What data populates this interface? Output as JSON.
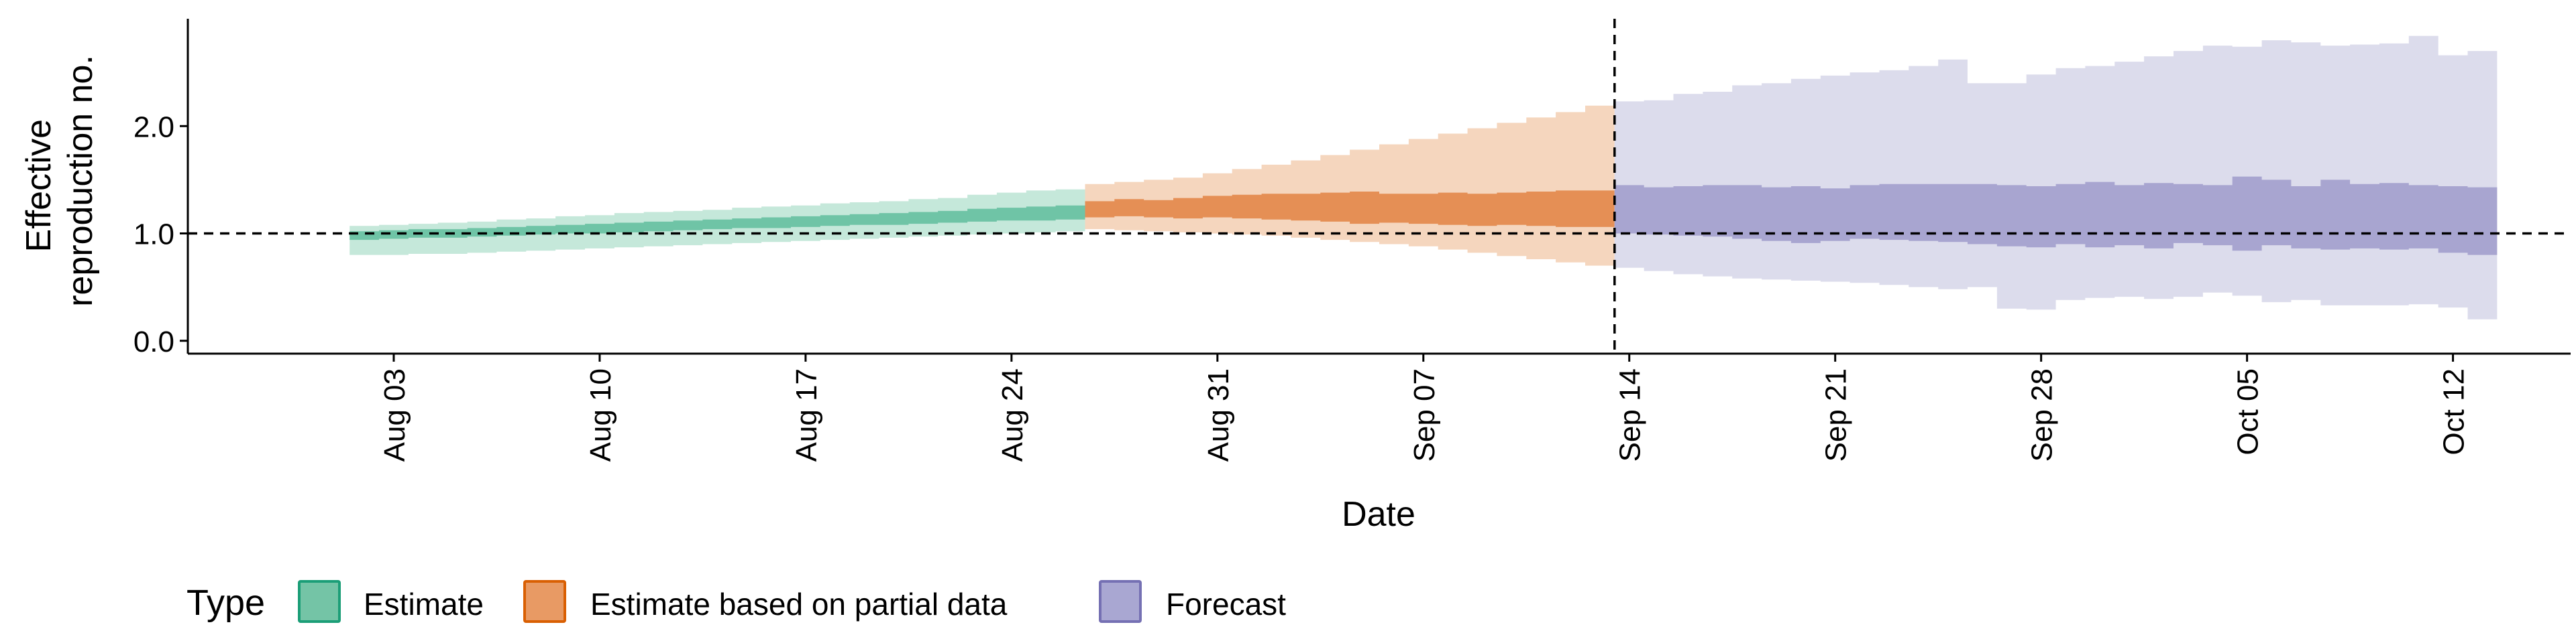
{
  "chart_data": {
    "type": "area",
    "xlabel": "Date",
    "ylabel_lines": [
      "Effective",
      "reproduction no."
    ],
    "x_date_ticks": [
      "2020-08-03",
      "2020-08-10",
      "2020-08-17",
      "2020-08-24",
      "2020-08-31",
      "2020-09-07",
      "2020-09-14",
      "2020-09-21",
      "2020-09-28",
      "2020-10-05",
      "2020-10-12"
    ],
    "x_tick_labels": [
      "Aug 03",
      "Aug 10",
      "Aug 17",
      "Aug 24",
      "Aug 31",
      "Sep 07",
      "Sep 14",
      "Sep 21",
      "Sep 28",
      "Oct 05",
      "Oct 12"
    ],
    "y_ticks": [
      0.0,
      1.0,
      2.0
    ],
    "y_tick_labels": [
      "0.0",
      "1.0",
      "2.0"
    ],
    "xlim": [
      "2020-07-27",
      "2020-10-16"
    ],
    "ylim": [
      -0.12,
      3.0
    ],
    "reference_hline": 1.0,
    "reference_vline": "2020-09-13",
    "grid": false,
    "legend_position": "bottom-left",
    "legend": {
      "title": "Type",
      "items": [
        {
          "label": "Estimate",
          "fill": "#74c4a6",
          "border": "#1b9e77"
        },
        {
          "label": "Estimate based on partial data",
          "fill": "#e89a64",
          "border": "#d95f02"
        },
        {
          "label": "Forecast",
          "fill": "#a9a7d2",
          "border": "#7570b3"
        }
      ]
    },
    "series": [
      {
        "name": "Estimate",
        "colors": {
          "outer": "#c5e8da",
          "inner": "#6fc4a6"
        },
        "x": [
          "2020-08-02",
          "2020-08-03",
          "2020-08-04",
          "2020-08-05",
          "2020-08-06",
          "2020-08-07",
          "2020-08-08",
          "2020-08-09",
          "2020-08-10",
          "2020-08-11",
          "2020-08-12",
          "2020-08-13",
          "2020-08-14",
          "2020-08-15",
          "2020-08-16",
          "2020-08-17",
          "2020-08-18",
          "2020-08-19",
          "2020-08-20",
          "2020-08-21",
          "2020-08-22",
          "2020-08-23",
          "2020-08-24",
          "2020-08-25",
          "2020-08-26"
        ],
        "outer_low": [
          0.8,
          0.8,
          0.81,
          0.81,
          0.82,
          0.83,
          0.84,
          0.85,
          0.86,
          0.87,
          0.88,
          0.89,
          0.9,
          0.91,
          0.92,
          0.93,
          0.94,
          0.95,
          0.96,
          0.97,
          0.98,
          0.99,
          1.0,
          1.01,
          1.02
        ],
        "outer_high": [
          1.07,
          1.08,
          1.09,
          1.1,
          1.11,
          1.13,
          1.14,
          1.16,
          1.17,
          1.19,
          1.2,
          1.21,
          1.22,
          1.24,
          1.25,
          1.26,
          1.28,
          1.29,
          1.3,
          1.32,
          1.33,
          1.36,
          1.38,
          1.4,
          1.41
        ],
        "inner_low": [
          0.94,
          0.95,
          0.96,
          0.96,
          0.97,
          0.98,
          0.99,
          1.0,
          1.0,
          1.01,
          1.02,
          1.03,
          1.04,
          1.05,
          1.05,
          1.06,
          1.07,
          1.08,
          1.08,
          1.09,
          1.1,
          1.11,
          1.12,
          1.12,
          1.13
        ],
        "inner_high": [
          1.02,
          1.03,
          1.04,
          1.04,
          1.05,
          1.06,
          1.07,
          1.08,
          1.09,
          1.1,
          1.11,
          1.12,
          1.13,
          1.14,
          1.15,
          1.16,
          1.17,
          1.18,
          1.19,
          1.2,
          1.21,
          1.23,
          1.24,
          1.25,
          1.26
        ]
      },
      {
        "name": "Estimate based on partial data",
        "colors": {
          "outer": "#f5d6be",
          "inner": "#e58f55"
        },
        "x": [
          "2020-08-27",
          "2020-08-28",
          "2020-08-29",
          "2020-08-30",
          "2020-08-31",
          "2020-09-01",
          "2020-09-02",
          "2020-09-03",
          "2020-09-04",
          "2020-09-05",
          "2020-09-06",
          "2020-09-07",
          "2020-09-08",
          "2020-09-09",
          "2020-09-10",
          "2020-09-11",
          "2020-09-12",
          "2020-09-13"
        ],
        "outer_low": [
          1.04,
          1.03,
          1.02,
          1.01,
          1.0,
          0.99,
          0.98,
          0.96,
          0.94,
          0.92,
          0.9,
          0.88,
          0.85,
          0.82,
          0.79,
          0.76,
          0.73,
          0.7
        ],
        "outer_high": [
          1.46,
          1.48,
          1.5,
          1.52,
          1.56,
          1.6,
          1.64,
          1.68,
          1.73,
          1.78,
          1.83,
          1.88,
          1.93,
          1.98,
          2.03,
          2.08,
          2.13,
          2.19
        ],
        "inner_low": [
          1.15,
          1.16,
          1.15,
          1.14,
          1.15,
          1.14,
          1.13,
          1.12,
          1.11,
          1.09,
          1.1,
          1.09,
          1.08,
          1.07,
          1.08,
          1.07,
          1.06,
          1.06
        ],
        "inner_high": [
          1.3,
          1.32,
          1.31,
          1.33,
          1.35,
          1.36,
          1.37,
          1.37,
          1.38,
          1.39,
          1.37,
          1.37,
          1.38,
          1.37,
          1.38,
          1.39,
          1.4,
          1.4
        ]
      },
      {
        "name": "Forecast",
        "colors": {
          "outer": "#dcdcec",
          "inner": "#a8a5d0"
        },
        "x": [
          "2020-09-14",
          "2020-09-15",
          "2020-09-16",
          "2020-09-17",
          "2020-09-18",
          "2020-09-19",
          "2020-09-20",
          "2020-09-21",
          "2020-09-22",
          "2020-09-23",
          "2020-09-24",
          "2020-09-25",
          "2020-09-26",
          "2020-09-27",
          "2020-09-28",
          "2020-09-29",
          "2020-09-30",
          "2020-10-01",
          "2020-10-02",
          "2020-10-03",
          "2020-10-04",
          "2020-10-05",
          "2020-10-06",
          "2020-10-07",
          "2020-10-08",
          "2020-10-09",
          "2020-10-10",
          "2020-10-11",
          "2020-10-12",
          "2020-10-13"
        ],
        "outer_low": [
          0.68,
          0.65,
          0.62,
          0.6,
          0.58,
          0.57,
          0.56,
          0.55,
          0.54,
          0.52,
          0.5,
          0.48,
          0.5,
          0.3,
          0.29,
          0.38,
          0.4,
          0.41,
          0.39,
          0.41,
          0.45,
          0.42,
          0.36,
          0.38,
          0.33,
          0.33,
          0.33,
          0.34,
          0.31,
          0.2
        ],
        "outer_high": [
          2.23,
          2.24,
          2.3,
          2.32,
          2.38,
          2.4,
          2.44,
          2.47,
          2.5,
          2.52,
          2.56,
          2.62,
          2.4,
          2.4,
          2.48,
          2.54,
          2.56,
          2.6,
          2.65,
          2.7,
          2.75,
          2.74,
          2.8,
          2.78,
          2.75,
          2.76,
          2.77,
          2.84,
          2.66,
          2.7
        ],
        "inner_low": [
          1.0,
          0.99,
          0.98,
          0.97,
          0.95,
          0.93,
          0.91,
          0.93,
          0.95,
          0.94,
          0.93,
          0.92,
          0.9,
          0.88,
          0.87,
          0.9,
          0.87,
          0.89,
          0.86,
          0.91,
          0.89,
          0.84,
          0.89,
          0.86,
          0.85,
          0.86,
          0.85,
          0.86,
          0.82,
          0.8
        ],
        "inner_high": [
          1.45,
          1.43,
          1.44,
          1.45,
          1.45,
          1.43,
          1.44,
          1.42,
          1.45,
          1.46,
          1.46,
          1.46,
          1.46,
          1.45,
          1.44,
          1.46,
          1.48,
          1.45,
          1.47,
          1.46,
          1.45,
          1.53,
          1.5,
          1.44,
          1.5,
          1.46,
          1.47,
          1.45,
          1.44,
          1.43
        ]
      }
    ]
  }
}
